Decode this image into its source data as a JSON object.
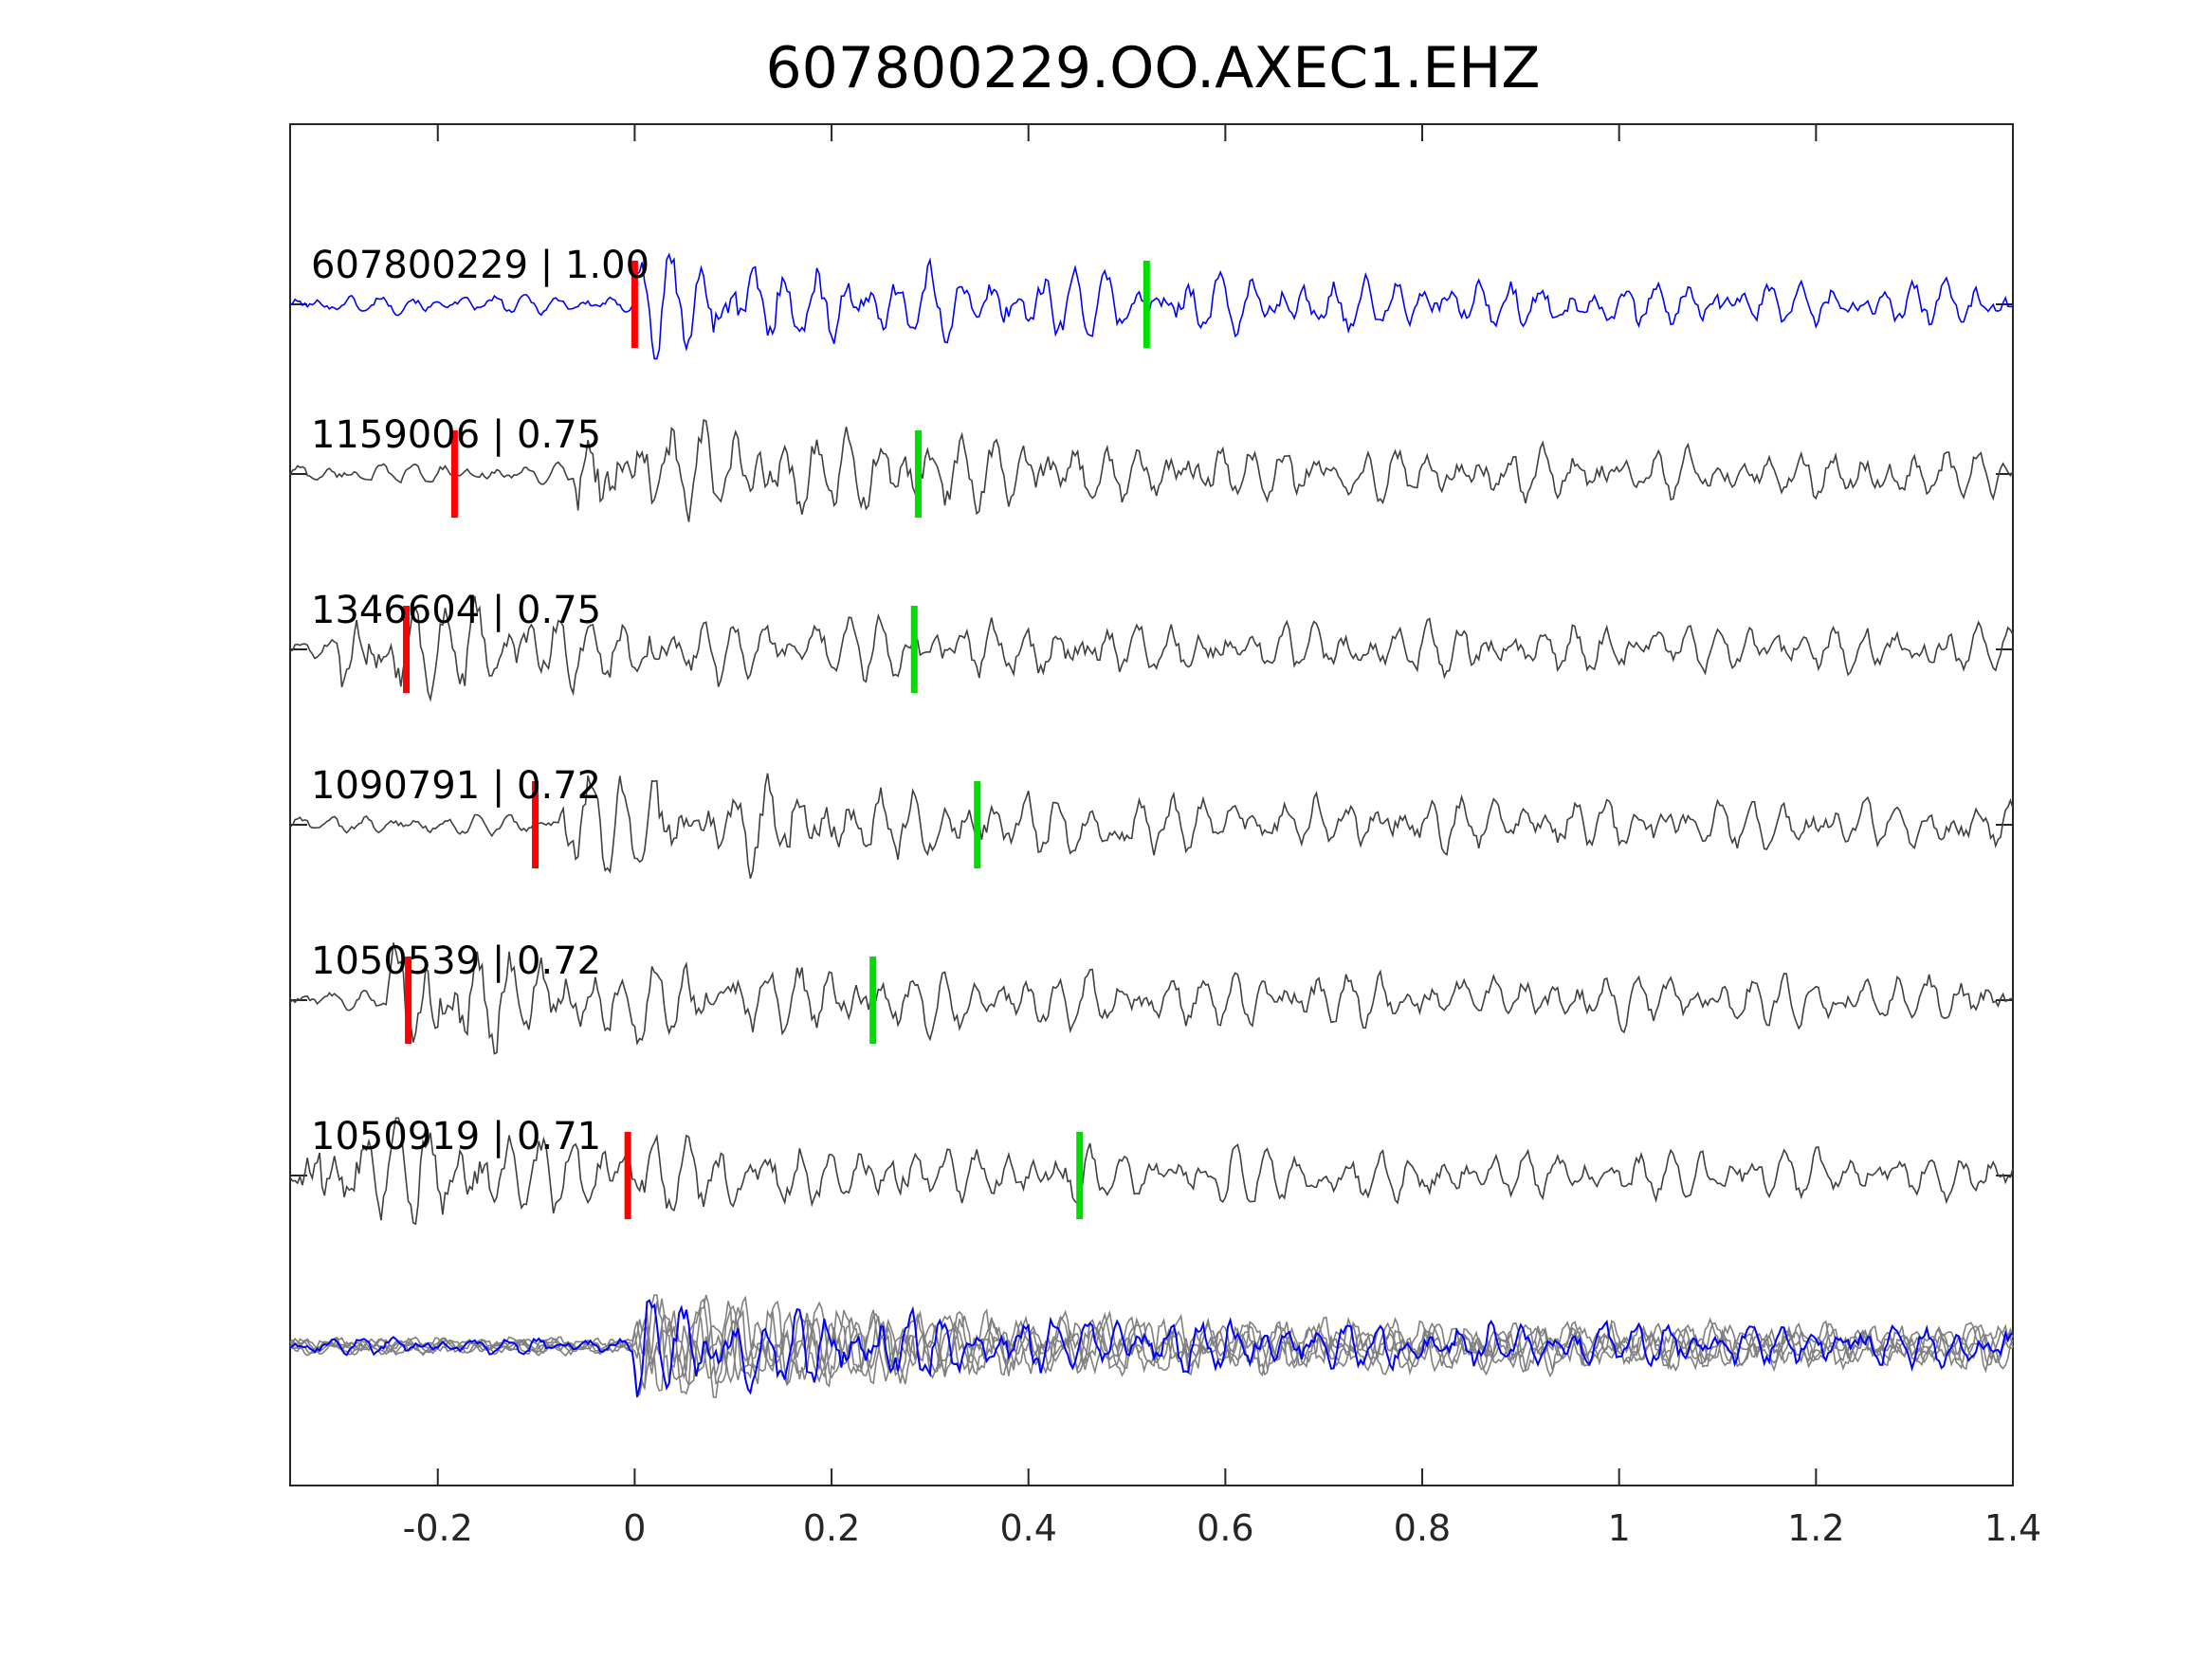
{
  "chart_data": {
    "type": "line",
    "title": "607800229.OO.AXEC1.EHZ",
    "xlabel": "",
    "ylabel": "",
    "xlim": [
      -0.35,
      1.4
    ],
    "xticks": [
      -0.2,
      0,
      0.2,
      0.4,
      0.6,
      0.8,
      1,
      1.2,
      1.4
    ],
    "xtick_labels": [
      "-0.2",
      "0",
      "0.2",
      "0.4",
      "0.6",
      "0.8",
      "1",
      "1.2",
      "1.4"
    ],
    "grid": false,
    "legend": "none",
    "colors": {
      "template": "#0000ff",
      "match": "#404040",
      "stack_match": "#808080",
      "p_pick": "#ff0000",
      "s_pick": "#00dd00",
      "axes": "#262626"
    },
    "series": [
      {
        "name": "607800229",
        "cc": "1.00",
        "label": "607800229 | 1.00",
        "p_pick": 0.0,
        "s_pick": 0.52,
        "onset": 0.0,
        "amplitude": 0.85
      },
      {
        "name": "1159006",
        "cc": "0.75",
        "label": "1159006 | 0.75",
        "p_pick": -0.183,
        "s_pick": 0.288,
        "onset": -0.06,
        "amplitude": 0.9
      },
      {
        "name": "1346604",
        "cc": "0.75",
        "label": "1346604 | 0.75",
        "p_pick": -0.232,
        "s_pick": 0.284,
        "onset": -0.3,
        "amplitude": 0.9
      },
      {
        "name": "1090791",
        "cc": "0.72",
        "label": "1090791 | 0.72",
        "p_pick": -0.101,
        "s_pick": 0.348,
        "onset": -0.08,
        "amplitude": 0.9
      },
      {
        "name": "1050539",
        "cc": "0.72",
        "label": "1050539 | 0.72",
        "p_pick": -0.23,
        "s_pick": 0.242,
        "onset": -0.25,
        "amplitude": 0.9
      },
      {
        "name": "1050919",
        "cc": "0.71",
        "label": "1050919 | 0.71",
        "p_pick": -0.007,
        "s_pick": 0.452,
        "onset": -0.34,
        "amplitude": 0.9
      }
    ],
    "stack": {
      "description_visible": false,
      "onset": 0.0
    }
  }
}
